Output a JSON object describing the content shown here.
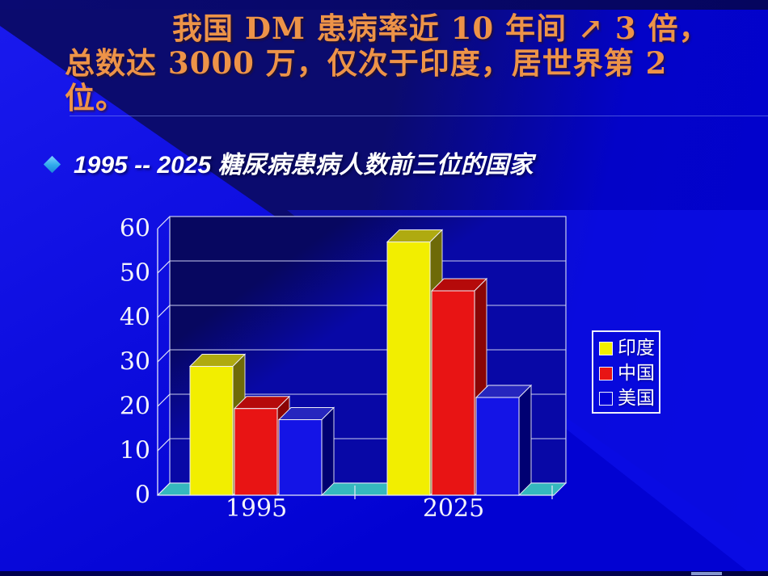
{
  "slide": {
    "title": {
      "line1": "我国 DM 患病率近 10 年间 ↗ 3 倍，",
      "line2": "总数达 3000 万，仅次于印度，居世界第 2",
      "line3": "位。",
      "color": "#ED9348"
    },
    "bullet": {
      "text": "1995 -- 2025  糖尿病患病人数前三位的国家",
      "diamond_color": "#2FA8EC",
      "text_color": "#FFFFFF"
    },
    "background": {
      "base_color": "#0202CF",
      "beam_color": "#1A1AEE",
      "dark_band_color": "#0B0B6E"
    }
  },
  "chart_data": {
    "type": "bar",
    "style": "3d-column",
    "title": "",
    "xlabel": "",
    "ylabel": "",
    "categories": [
      "1995",
      "2025"
    ],
    "series": [
      {
        "name": "印度",
        "key": "india",
        "values": [
          29,
          57
        ],
        "colors": {
          "front": "#F2EE00",
          "top": "#AFAA10",
          "side": "#6E6A08",
          "swatch": "#F2EE00"
        }
      },
      {
        "name": "中国",
        "key": "china",
        "values": [
          19.5,
          46
        ],
        "colors": {
          "front": "#E81414",
          "top": "#B50A0A",
          "side": "#8A0505",
          "swatch": "#E81414"
        }
      },
      {
        "name": "美国",
        "key": "usa",
        "values": [
          17,
          22
        ],
        "colors": {
          "front": "#1414E6",
          "top": "#2626BE",
          "side": "#000072",
          "swatch": "#0101D8"
        }
      }
    ],
    "ylim": [
      0,
      60
    ],
    "yticks": [
      0,
      10,
      20,
      30,
      40,
      50,
      60
    ],
    "grid": true,
    "legend_position": "right",
    "wall_color": "#0808A6",
    "wall_dark_color": "#070760",
    "floor_color": "#35B8BE",
    "gridline_color": "#C9CDEF",
    "axis_line_color": "#E8EAF8",
    "tick_label_color": "#F2F2FA"
  }
}
